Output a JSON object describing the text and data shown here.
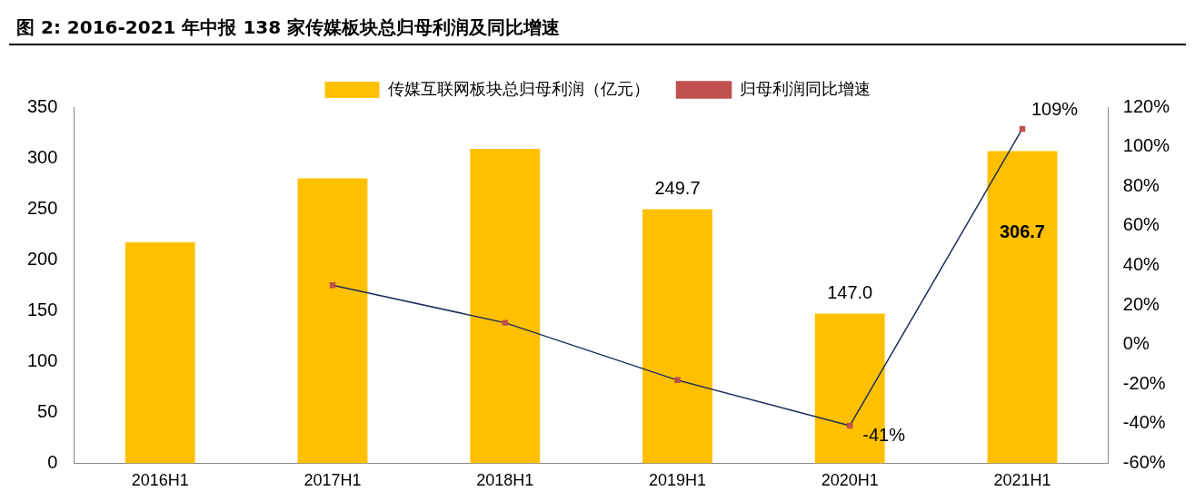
{
  "chart_data": {
    "type": "bar",
    "title": "图 2:  2016-2021 年中报 138 家传媒板块总归母利润及同比增速",
    "categories": [
      "2016H1",
      "2017H1",
      "2018H1",
      "2019H1",
      "2020H1",
      "2021H1"
    ],
    "series": [
      {
        "name": "传媒互联网板块总归母利润（亿元）",
        "color": "#ffc000",
        "values": [
          217,
          280,
          309,
          249.7,
          147.0,
          306.7
        ],
        "value_labels": [
          null,
          null,
          null,
          "249.7",
          "147.0",
          "306.7"
        ]
      },
      {
        "name": "归母利润同比增速",
        "type": "line",
        "axis": "y2",
        "color": "#1f2d5a",
        "marker": "square",
        "values": [
          null,
          30,
          11,
          -18,
          -41,
          109
        ],
        "value_labels": [
          null,
          null,
          null,
          null,
          "-41%",
          "109%"
        ]
      }
    ],
    "ylim": [
      0,
      350
    ],
    "yticks": [
      0,
      50,
      100,
      150,
      200,
      250,
      300,
      350
    ],
    "y2lim": [
      -60,
      120
    ],
    "y2ticks": [
      {
        "value": -60,
        "label": "-60%"
      },
      {
        "value": -40,
        "label": "-40%"
      },
      {
        "value": -20,
        "label": "-20%"
      },
      {
        "value": 0,
        "label": "0%"
      },
      {
        "value": 20,
        "label": "20%"
      },
      {
        "value": 40,
        "label": "40%"
      },
      {
        "value": 60,
        "label": "60%"
      },
      {
        "value": 80,
        "label": "80%"
      },
      {
        "value": 100,
        "label": "100%"
      },
      {
        "value": 120,
        "label": "120%"
      }
    ],
    "grid": false,
    "legend": "top"
  }
}
